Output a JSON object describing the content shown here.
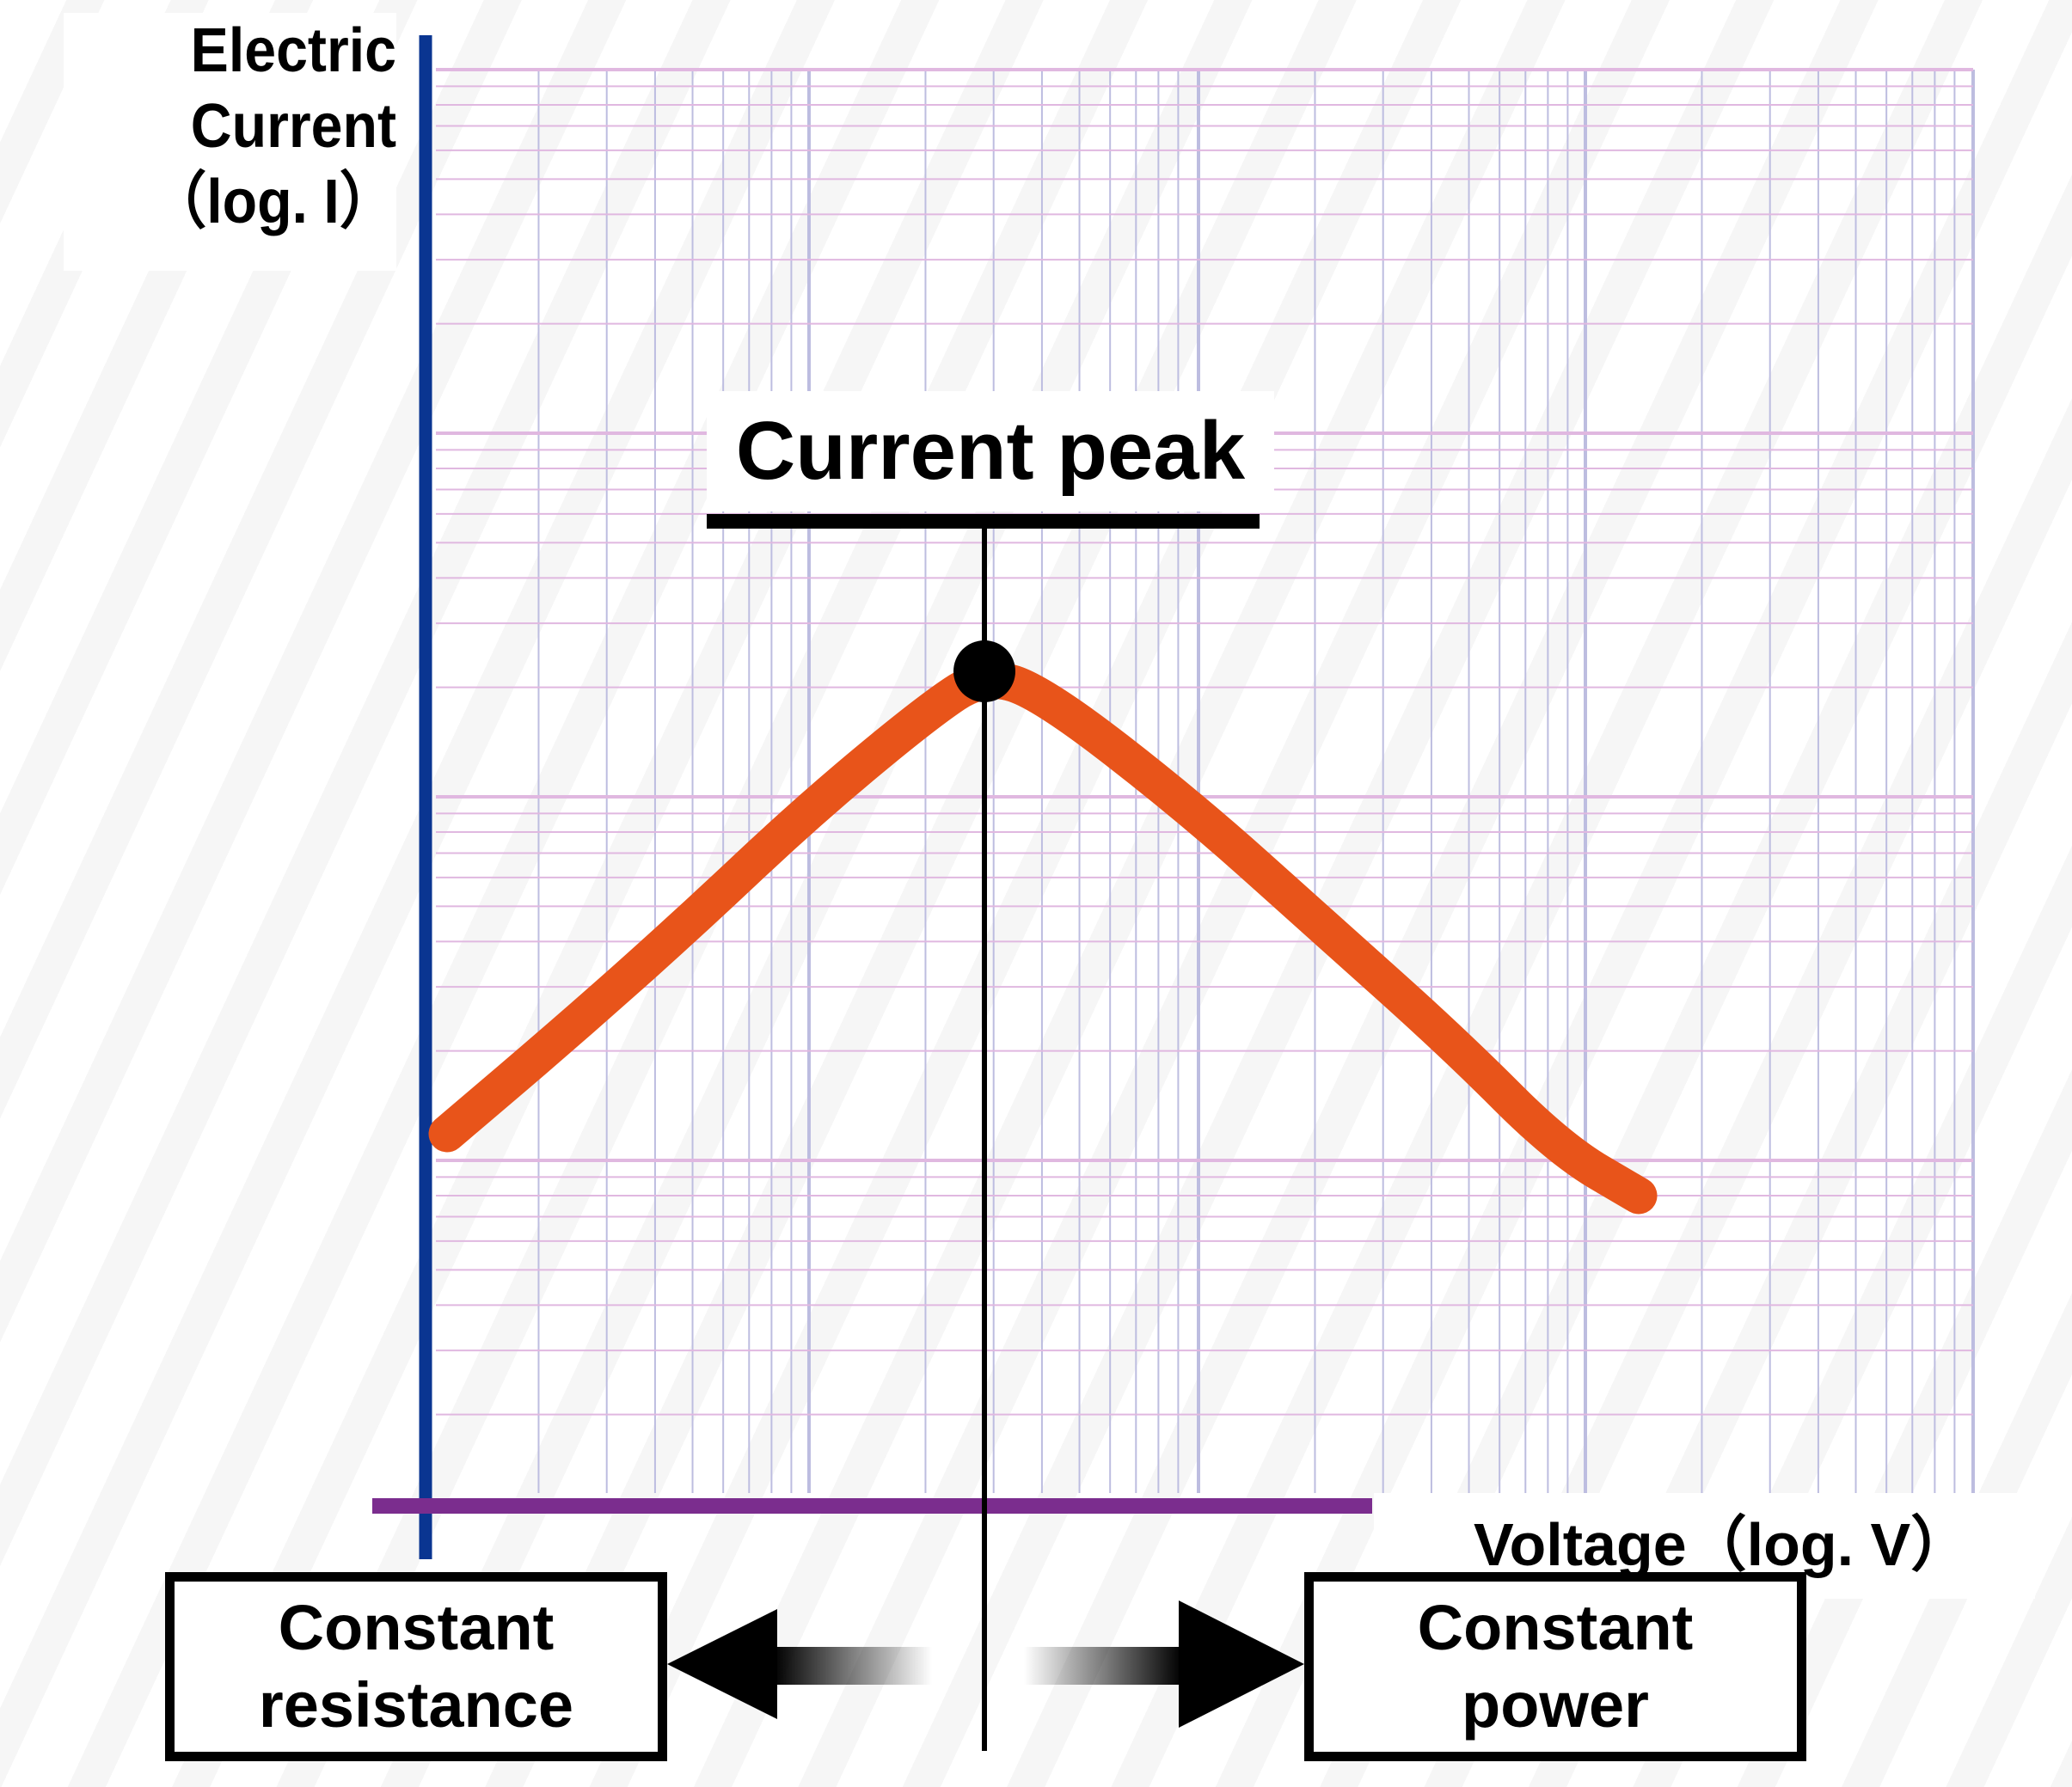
{
  "y_axis_label": {
    "line1": "Electric",
    "line2": "Current",
    "line3": "（log. I）"
  },
  "x_axis_label": "Voltage（log. V）",
  "annotation_peak": "Current peak",
  "region_left": {
    "line1": "Constant",
    "line2": "resistance"
  },
  "region_right": {
    "line1": "Constant",
    "line2": "power"
  },
  "colors": {
    "y_axis": "#0a3591",
    "x_axis": "#7b2d8e",
    "curve": "#e8541a",
    "grid_vertical": "#bdbde0",
    "grid_horizontal": "#e0b8e0",
    "marker": "#000000"
  },
  "scales": {
    "x": "log",
    "y": "log"
  },
  "grid": true,
  "arrows": [
    {
      "direction": "left",
      "points_to": "Constant resistance"
    },
    {
      "direction": "right",
      "points_to": "Constant power"
    }
  ]
}
